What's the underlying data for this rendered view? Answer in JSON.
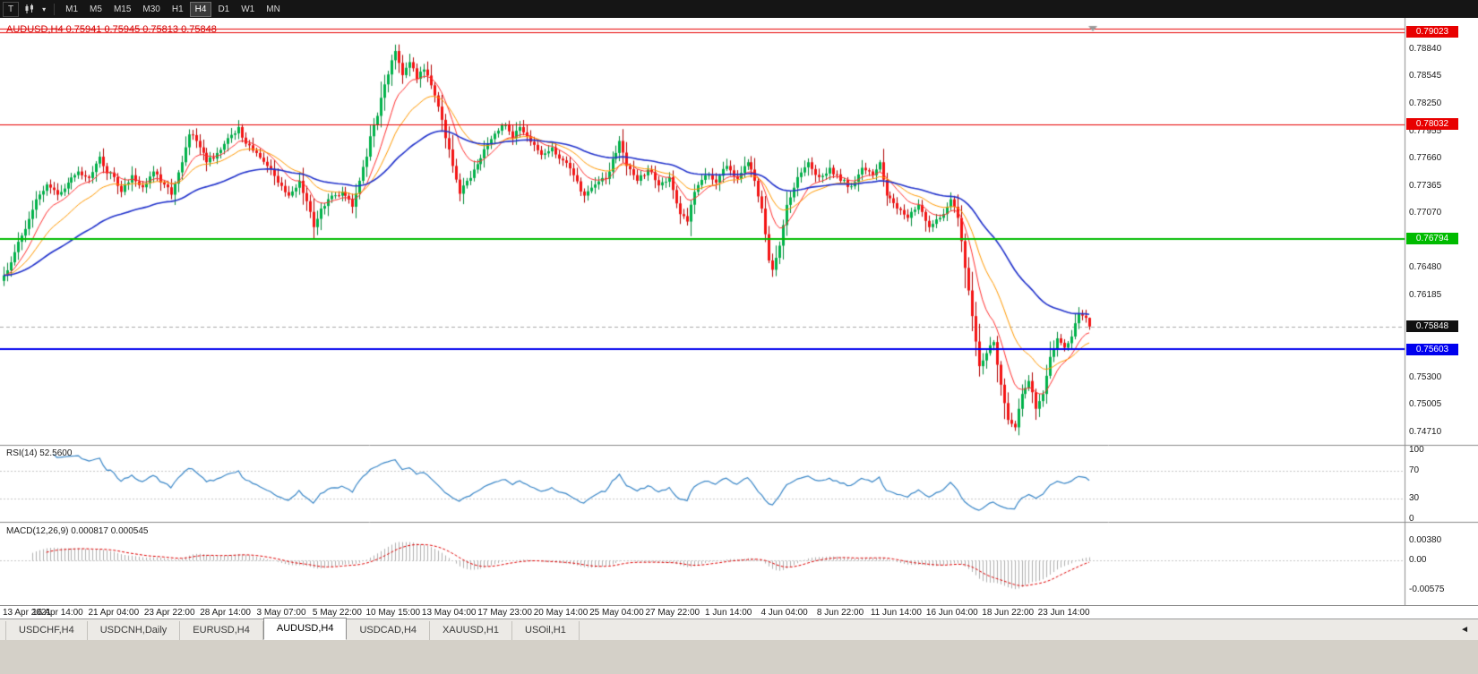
{
  "toolbar": {
    "t_label": "T",
    "dropdown_icon": "▾",
    "timeframes": [
      "M1",
      "M5",
      "M15",
      "M30",
      "H1",
      "H4",
      "D1",
      "W1",
      "MN"
    ],
    "active_timeframe": "H4"
  },
  "chart": {
    "title": "AUDUSD,H4 0.75941 0.75945 0.75813 0.75848",
    "symbol": "AUDUSD",
    "period": "H4",
    "ohlc": {
      "open": "0.75941",
      "high": "0.75945",
      "low": "0.75813",
      "close": "0.75848"
    },
    "price_axis": {
      "max": 0.791,
      "min": 0.746,
      "ticks": [
        "0.78840",
        "0.78545",
        "0.78250",
        "0.77955",
        "0.77660",
        "0.77365",
        "0.77070",
        "0.76775",
        "0.76480",
        "0.76185",
        "0.75890",
        "0.75595",
        "0.75300",
        "0.75005",
        "0.74710"
      ]
    },
    "hlines": [
      {
        "price": 0.79065,
        "color": "#e80000",
        "width": 1,
        "label": ""
      },
      {
        "price": 0.79023,
        "color": "#e80000",
        "width": 1,
        "label": "0.79023"
      },
      {
        "price": 0.78032,
        "color": "#e80000",
        "width": 1,
        "label": "0.78032"
      },
      {
        "price": 0.76794,
        "color": "#00bb00",
        "width": 2,
        "label": "0.76794"
      },
      {
        "price": 0.75603,
        "color": "#0000ee",
        "width": 2,
        "label": "0.75603"
      }
    ],
    "current_price": {
      "price": 0.75848,
      "label": "0.75848",
      "color": "#101010"
    },
    "colors": {
      "up_fill": "#00b24a",
      "up_border": "#028a3a",
      "down_fill": "#f41414",
      "down_border": "#b00000",
      "ma_fast": "#ff3030",
      "ma_mid": "#ff9900",
      "ma_slow": "#2233cc",
      "bg": "#ffffff",
      "axis_line": "#8c8c8c",
      "current_line": "#aaaaaa"
    },
    "ma_periods": {
      "fast": 10,
      "mid": 21,
      "slow": 55
    }
  },
  "rsi": {
    "label": "RSI(14)",
    "value": "52.5600",
    "period": 14,
    "axis_ticks": [
      "100",
      "70",
      "30",
      "0"
    ],
    "level_lines": [
      70,
      30
    ],
    "color": "#3a87c8"
  },
  "macd": {
    "label": "MACD(12,26,9)",
    "value_main": "0.000817",
    "value_signal": "0.000545",
    "fast": 12,
    "slow": 26,
    "signal": 9,
    "axis_ticks": [
      "0.00380",
      "0.00",
      "-0.00575"
    ],
    "bar_color": "#b0b0b0",
    "signal_color": "#e00000"
  },
  "time_axis": {
    "labels": [
      "13 Apr 2021",
      "16 Apr 14:00",
      "21 Apr 04:00",
      "23 Apr 22:00",
      "28 Apr 14:00",
      "3 May 07:00",
      "5 May 22:00",
      "10 May 15:00",
      "13 May 04:00",
      "17 May 23:00",
      "20 May 14:00",
      "25 May 04:00",
      "27 May 22:00",
      "1 Jun 14:00",
      "4 Jun 04:00",
      "8 Jun 22:00",
      "11 Jun 14:00",
      "16 Jun 04:00",
      "18 Jun 22:00",
      "23 Jun 14:00"
    ]
  },
  "tabs": {
    "items": [
      "USDCHF,H4",
      "USDCNH,Daily",
      "EURUSD,H4",
      "AUDUSD,H4",
      "USDCAD,H4",
      "XAUUSD,H1",
      "USOil,H1"
    ],
    "active": "AUDUSD,H4",
    "active_index": 3,
    "scroll_left_icon": "◄"
  },
  "chart_data": {
    "type": "candlestick",
    "symbol": "AUDUSD",
    "timeframe": "H4",
    "candle_count": 306,
    "visible_price_range": [
      0.746,
      0.791
    ],
    "note": "close-price control points [candle_index, price] traced from the chart; candles, MAs, RSI and MACD are derived from this path",
    "price_path": [
      [
        0,
        0.764
      ],
      [
        3,
        0.7665
      ],
      [
        6,
        0.769
      ],
      [
        9,
        0.7722
      ],
      [
        12,
        0.7738
      ],
      [
        15,
        0.7727
      ],
      [
        18,
        0.774
      ],
      [
        21,
        0.7752
      ],
      [
        24,
        0.7745
      ],
      [
        27,
        0.7768
      ],
      [
        29,
        0.775
      ],
      [
        31,
        0.7746
      ],
      [
        33,
        0.773
      ],
      [
        36,
        0.7748
      ],
      [
        39,
        0.7735
      ],
      [
        42,
        0.7752
      ],
      [
        45,
        0.7738
      ],
      [
        47,
        0.7727
      ],
      [
        50,
        0.7762
      ],
      [
        52,
        0.7792
      ],
      [
        54,
        0.7785
      ],
      [
        57,
        0.7762
      ],
      [
        60,
        0.7772
      ],
      [
        63,
        0.7788
      ],
      [
        66,
        0.78
      ],
      [
        68,
        0.7782
      ],
      [
        71,
        0.7772
      ],
      [
        74,
        0.7758
      ],
      [
        77,
        0.774
      ],
      [
        80,
        0.7726
      ],
      [
        83,
        0.7742
      ],
      [
        85,
        0.772
      ],
      [
        87,
        0.7692
      ],
      [
        89,
        0.7712
      ],
      [
        92,
        0.7726
      ],
      [
        95,
        0.773
      ],
      [
        98,
        0.7714
      ],
      [
        100,
        0.7742
      ],
      [
        102,
        0.7768
      ],
      [
        103,
        0.779
      ],
      [
        105,
        0.7812
      ],
      [
        107,
        0.7846
      ],
      [
        109,
        0.7872
      ],
      [
        110,
        0.7882
      ],
      [
        112,
        0.7856
      ],
      [
        114,
        0.787
      ],
      [
        116,
        0.7852
      ],
      [
        118,
        0.7862
      ],
      [
        120,
        0.7845
      ],
      [
        122,
        0.7822
      ],
      [
        124,
        0.7788
      ],
      [
        126,
        0.7758
      ],
      [
        128,
        0.7728
      ],
      [
        130,
        0.7742
      ],
      [
        133,
        0.776
      ],
      [
        136,
        0.7782
      ],
      [
        139,
        0.7796
      ],
      [
        141,
        0.7802
      ],
      [
        143,
        0.7788
      ],
      [
        145,
        0.78
      ],
      [
        148,
        0.7784
      ],
      [
        151,
        0.777
      ],
      [
        154,
        0.7778
      ],
      [
        157,
        0.7764
      ],
      [
        160,
        0.7748
      ],
      [
        163,
        0.7726
      ],
      [
        166,
        0.7738
      ],
      [
        169,
        0.7744
      ],
      [
        172,
        0.7772
      ],
      [
        173,
        0.7785
      ],
      [
        175,
        0.7758
      ],
      [
        178,
        0.7742
      ],
      [
        181,
        0.7754
      ],
      [
        184,
        0.7737
      ],
      [
        187,
        0.7746
      ],
      [
        190,
        0.7706
      ],
      [
        192,
        0.7698
      ],
      [
        194,
        0.773
      ],
      [
        197,
        0.7748
      ],
      [
        200,
        0.774
      ],
      [
        203,
        0.7758
      ],
      [
        206,
        0.7744
      ],
      [
        209,
        0.7762
      ],
      [
        211,
        0.7742
      ],
      [
        213,
        0.7712
      ],
      [
        215,
        0.7656
      ],
      [
        216,
        0.7646
      ],
      [
        218,
        0.7672
      ],
      [
        220,
        0.7716
      ],
      [
        223,
        0.7746
      ],
      [
        226,
        0.7762
      ],
      [
        229,
        0.7746
      ],
      [
        232,
        0.7756
      ],
      [
        235,
        0.7742
      ],
      [
        238,
        0.7736
      ],
      [
        241,
        0.7756
      ],
      [
        244,
        0.7748
      ],
      [
        246,
        0.7762
      ],
      [
        248,
        0.7726
      ],
      [
        251,
        0.7712
      ],
      [
        254,
        0.7702
      ],
      [
        257,
        0.7716
      ],
      [
        260,
        0.7692
      ],
      [
        263,
        0.7702
      ],
      [
        266,
        0.7722
      ],
      [
        268,
        0.7702
      ],
      [
        270,
        0.7648
      ],
      [
        272,
        0.7596
      ],
      [
        274,
        0.7542
      ],
      [
        276,
        0.7556
      ],
      [
        278,
        0.7568
      ],
      [
        280,
        0.7522
      ],
      [
        282,
        0.7484
      ],
      [
        284,
        0.7476
      ],
      [
        286,
        0.7512
      ],
      [
        288,
        0.7526
      ],
      [
        290,
        0.7496
      ],
      [
        292,
        0.7512
      ],
      [
        294,
        0.7552
      ],
      [
        296,
        0.7572
      ],
      [
        298,
        0.7562
      ],
      [
        300,
        0.7574
      ],
      [
        302,
        0.7598
      ],
      [
        304,
        0.75941
      ],
      [
        305,
        0.75848
      ]
    ]
  }
}
